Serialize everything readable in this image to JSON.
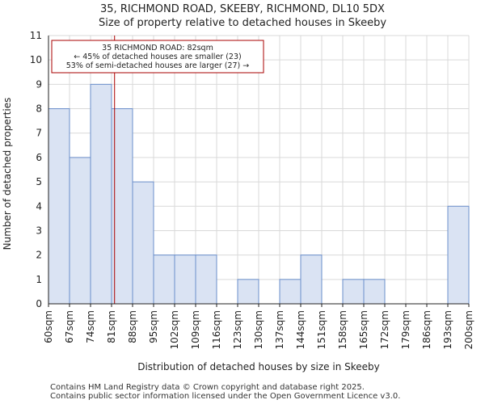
{
  "chart_data": {
    "type": "bar",
    "title_lines": [
      "35, RICHMOND ROAD, SKEEBY, RICHMOND, DL10 5DX",
      "Size of property relative to detached houses in Skeeby"
    ],
    "xlabel": "Distribution of detached houses by size in Skeeby",
    "ylabel": "Number of detached properties",
    "bin_edges": [
      60,
      67,
      74,
      81,
      88,
      95,
      102,
      109,
      116,
      123,
      130,
      137,
      144,
      151,
      158,
      165,
      172,
      179,
      186,
      193,
      200
    ],
    "tick_labels": [
      "60sqm",
      "67sqm",
      "74sqm",
      "81sqm",
      "88sqm",
      "95sqm",
      "102sqm",
      "109sqm",
      "116sqm",
      "123sqm",
      "130sqm",
      "137sqm",
      "144sqm",
      "151sqm",
      "158sqm",
      "165sqm",
      "172sqm",
      "179sqm",
      "186sqm",
      "193sqm",
      "200sqm"
    ],
    "values": [
      8,
      6,
      9,
      8,
      5,
      2,
      2,
      2,
      0,
      1,
      0,
      1,
      2,
      0,
      1,
      1,
      0,
      0,
      0,
      4
    ],
    "ylim": [
      0,
      11
    ],
    "yticks": [
      0,
      1,
      2,
      3,
      4,
      5,
      6,
      7,
      8,
      9,
      10,
      11
    ],
    "grid": true,
    "bar_fill": "#dae3f3",
    "bar_edge": "#6b8fcb",
    "marker": {
      "value": 82,
      "color": "#aa0000",
      "annotation_lines": [
        "35 RICHMOND ROAD: 82sqm",
        "← 45% of detached houses are smaller (23)",
        "53% of semi-detached houses are larger (27) →"
      ]
    }
  },
  "footer": [
    "Contains HM Land Registry data © Crown copyright and database right 2025.",
    "Contains public sector information licensed under the Open Government Licence v3.0."
  ]
}
